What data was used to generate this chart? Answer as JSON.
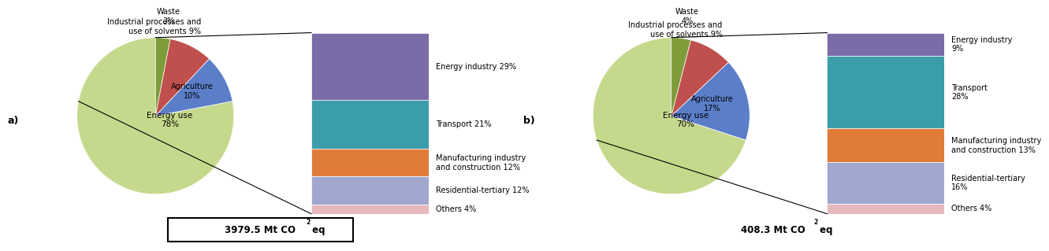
{
  "chart_a": {
    "label": "a)",
    "pie_values": [
      78,
      10,
      9,
      3
    ],
    "pie_labels": [
      "Energy use\n78%",
      "Agriculture\n10%",
      "Industrial processes and\nuse of solvents 9%",
      "Waste\n3%"
    ],
    "pie_colors": [
      "#c5d98c",
      "#5b7ec9",
      "#c0504d",
      "#7f9c3b"
    ],
    "pie_startangle": 90,
    "bar_values": [
      29,
      21,
      12,
      12,
      4
    ],
    "bar_labels": [
      "Energy industry 29%",
      "Transport 21%",
      "Manufacturing industry\nand construction 12%",
      "Residential-tertiary 12%",
      "Others 4%"
    ],
    "bar_colors": [
      "#7b6ba8",
      "#3b9dab",
      "#e07b39",
      "#a0a8d0",
      "#e5b8bb"
    ],
    "total_label": "3979.5 Mt CO",
    "total_suffix": "2",
    "total_unit": " eq",
    "total_boxed": true
  },
  "chart_b": {
    "label": "b)",
    "pie_values": [
      70,
      17,
      9,
      4
    ],
    "pie_labels": [
      "Energy use\n70%",
      "Agriculture\n17%",
      "Industrial processes and\nuse of solvents 9%",
      "Waste\n4%"
    ],
    "pie_colors": [
      "#c5d98c",
      "#5b7ec9",
      "#c0504d",
      "#7f9c3b"
    ],
    "pie_startangle": 90,
    "bar_values": [
      9,
      28,
      13,
      16,
      4
    ],
    "bar_labels": [
      "Energy industry\n9%",
      "Transport\n28%",
      "Manufacturing industry\nand construction 13%",
      "Residential-tertiary\n16%",
      "Others 4%"
    ],
    "bar_colors": [
      "#7b6ba8",
      "#3b9dab",
      "#e07b39",
      "#a0a8d0",
      "#e5b8bb"
    ],
    "total_label": "408.3 Mt CO",
    "total_suffix": "2",
    "total_unit": " eq",
    "total_boxed": false
  },
  "fig_width": 12.96,
  "fig_height": 3.11,
  "background_color": "#ffffff"
}
